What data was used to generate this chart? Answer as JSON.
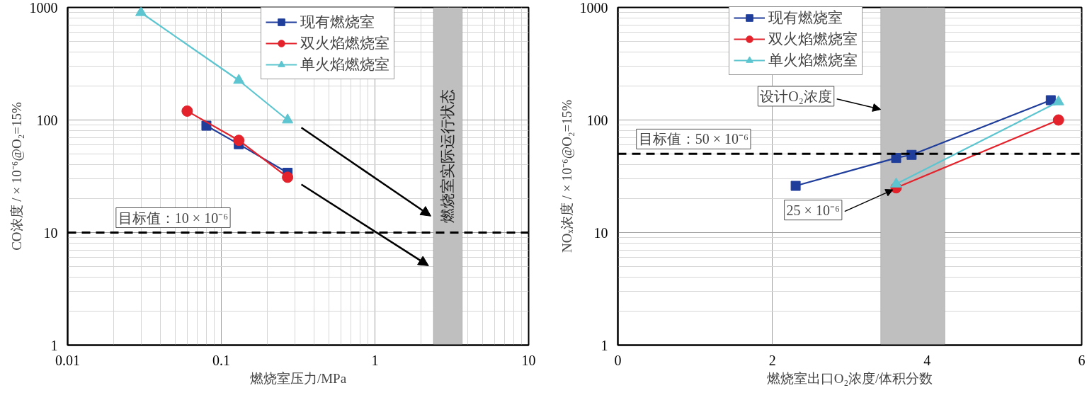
{
  "chart_data": [
    {
      "type": "line",
      "xlabel": "燃烧室压力/MPa",
      "ylabel": "CO浓度 / × 10⁻⁶@O₂=15%",
      "log": "xy",
      "xlim": [
        0.01,
        10
      ],
      "ylim": [
        1,
        1000
      ],
      "xticks": [
        0.01,
        0.1,
        1,
        10
      ],
      "yticks": [
        1,
        10,
        100,
        1000
      ],
      "grid": true,
      "legend": "top",
      "series": [
        {
          "name": "现有燃烧室",
          "color": "#1f3d9b",
          "marker": "square",
          "x": [
            0.08,
            0.13,
            0.27
          ],
          "values": [
            89,
            61,
            34
          ]
        },
        {
          "name": "双火焰燃烧室",
          "color": "#e3222b",
          "marker": "circle",
          "x": [
            0.06,
            0.13,
            0.27
          ],
          "values": [
            120,
            66,
            31
          ]
        },
        {
          "name": "单火焰燃烧室",
          "color": "#5cc5d0",
          "marker": "triangle",
          "x": [
            0.03,
            0.13,
            0.27
          ],
          "values": [
            900,
            225,
            100
          ]
        }
      ],
      "ref_lines": [
        {
          "axis": "y",
          "value": 10,
          "label": "目标值：10 × 10⁻⁶",
          "line_style": "dashed",
          "color": "#000000"
        }
      ],
      "bands": [
        {
          "axis": "x",
          "from": 2.4,
          "to": 3.7,
          "label": "燃烧室实际运行状态",
          "color": "#bfbfbf"
        }
      ]
    },
    {
      "type": "line",
      "xlabel": "燃烧室出口O₂浓度/体积分数",
      "ylabel": "NOₓ浓度 / × 10⁻⁶@O₂=15%",
      "log": "y",
      "xlim": [
        0,
        6
      ],
      "ylim": [
        1,
        1000
      ],
      "xticks": [
        0,
        2,
        4,
        6
      ],
      "yticks": [
        1,
        10,
        100,
        1000
      ],
      "grid": true,
      "legend": "top",
      "series": [
        {
          "name": "现有燃烧室",
          "color": "#1f3d9b",
          "marker": "square",
          "x": [
            2.3,
            3.6,
            3.8,
            5.6
          ],
          "values": [
            26,
            46,
            49,
            150
          ]
        },
        {
          "name": "双火焰燃烧室",
          "color": "#e3222b",
          "marker": "circle",
          "x": [
            3.6,
            5.7
          ],
          "values": [
            25,
            100
          ]
        },
        {
          "name": "单火焰燃烧室",
          "color": "#5cc5d0",
          "marker": "triangle",
          "x": [
            3.6,
            5.7
          ],
          "values": [
            27,
            145
          ]
        }
      ],
      "ref_lines": [
        {
          "axis": "y",
          "value": 50,
          "label": "目标值：50 × 10⁻⁶",
          "line_style": "dashed",
          "color": "#000000"
        }
      ],
      "bands": [
        {
          "axis": "x",
          "from": 3.4,
          "to": 4.23,
          "label": "设计O₂浓度",
          "color": "#bfbfbf"
        }
      ],
      "annotations": [
        {
          "text": "25 × 10⁻⁶",
          "x": 3.6,
          "y": 25
        }
      ]
    }
  ]
}
